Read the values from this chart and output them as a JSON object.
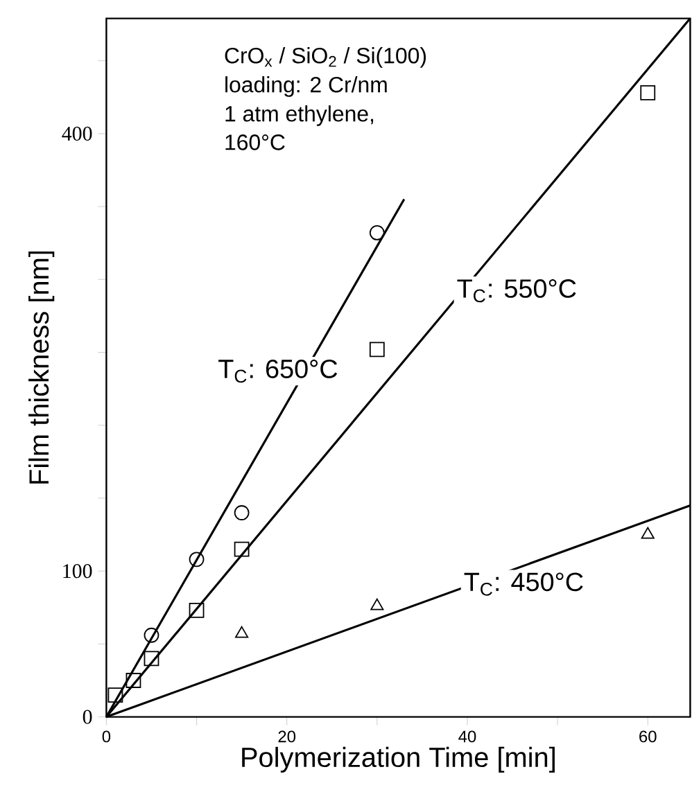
{
  "chart_data": {
    "type": "scatter",
    "xlabel": "Polymerization Time [min]",
    "ylabel": "Film thickness [nm]",
    "xlim": [
      0,
      64.7
    ],
    "ylim": [
      0,
      479
    ],
    "xticks": [
      0,
      {
        "value": 10,
        "label": null
      },
      20,
      {
        "value": 30,
        "label": null
      },
      40,
      {
        "value": 50,
        "label": null
      },
      60
    ],
    "yticks": [
      0,
      {
        "value": 50,
        "label": null
      },
      100,
      {
        "value": 150,
        "label": null
      },
      {
        "value": 200,
        "label": null
      },
      {
        "value": 250,
        "label": null
      },
      {
        "value": 300,
        "label": null
      },
      {
        "value": 350,
        "label": null
      },
      400,
      {
        "value": 450,
        "label": null
      }
    ],
    "series": [
      {
        "type": "line",
        "color": "#000000",
        "marker": "none",
        "x": [
          0,
          33
        ],
        "values": [
          0,
          355
        ]
      },
      {
        "type": "line",
        "color": "#000000",
        "marker": "none",
        "x": [
          0,
          64.7
        ],
        "values": [
          0,
          479
        ]
      },
      {
        "type": "line",
        "color": "#000000",
        "marker": "none",
        "x": [
          0,
          64.7
        ],
        "values": [
          0,
          145
        ]
      },
      {
        "color": "#000000",
        "marker": "circle",
        "x": [
          5,
          10,
          15,
          30
        ],
        "values": [
          56,
          108,
          140,
          332
        ]
      },
      {
        "color": "#000000",
        "marker": "square",
        "x": [
          1,
          3,
          5,
          10,
          15,
          30,
          60
        ],
        "values": [
          15,
          25,
          40,
          73,
          115,
          252,
          428
        ]
      },
      {
        "color": "#000000",
        "marker": "triangle",
        "x": [
          15,
          30,
          60
        ],
        "values": [
          57,
          76,
          125
        ]
      }
    ],
    "annotations": [
      "CrO$_{x}$ / SiO$_{2}$ / Si(100)",
      "loading: 2 Cr/nm",
      "1 atm ethylene,",
      "160°C",
      "T$_{C}$: 650°C",
      "T$_{C}$: 550°C",
      "T$_{C}$: 450°C"
    ]
  }
}
